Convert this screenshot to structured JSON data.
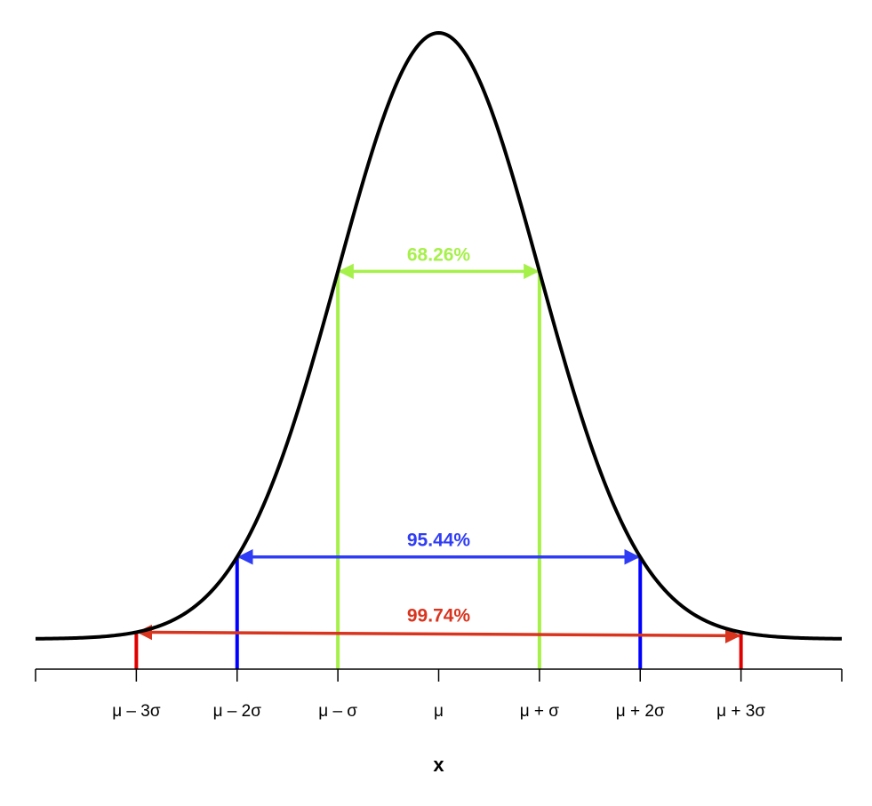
{
  "chart_data": {
    "type": "line",
    "title": "",
    "xlabel": "x",
    "ylabel": "",
    "xlim": [
      -4,
      4
    ],
    "ylim": [
      0,
      0.4
    ],
    "grid": false,
    "x_ticks": [
      {
        "value": -3,
        "label": "μ – 3σ"
      },
      {
        "value": -2,
        "label": "μ – 2σ"
      },
      {
        "value": -1,
        "label": "μ – σ"
      },
      {
        "value": 0,
        "label": "μ"
      },
      {
        "value": 1,
        "label": "μ + σ"
      },
      {
        "value": 2,
        "label": "μ + 2σ"
      },
      {
        "value": 3,
        "label": "μ + 3σ"
      }
    ],
    "curve": {
      "distribution": "normal",
      "mean": 0,
      "sd": 1,
      "color": "#000000"
    },
    "intervals": [
      {
        "from": -1,
        "to": 1,
        "label": "68.26%",
        "color": "#a6f04a"
      },
      {
        "from": -2,
        "to": 2,
        "label": "95.44%",
        "color": "#2f3cf5"
      },
      {
        "from": -3,
        "to": 3,
        "label": "99.74%",
        "color": "#d9341e"
      }
    ],
    "interval_line_colors": [
      "#a6f04a",
      "#0000ff",
      "#e00000"
    ]
  }
}
